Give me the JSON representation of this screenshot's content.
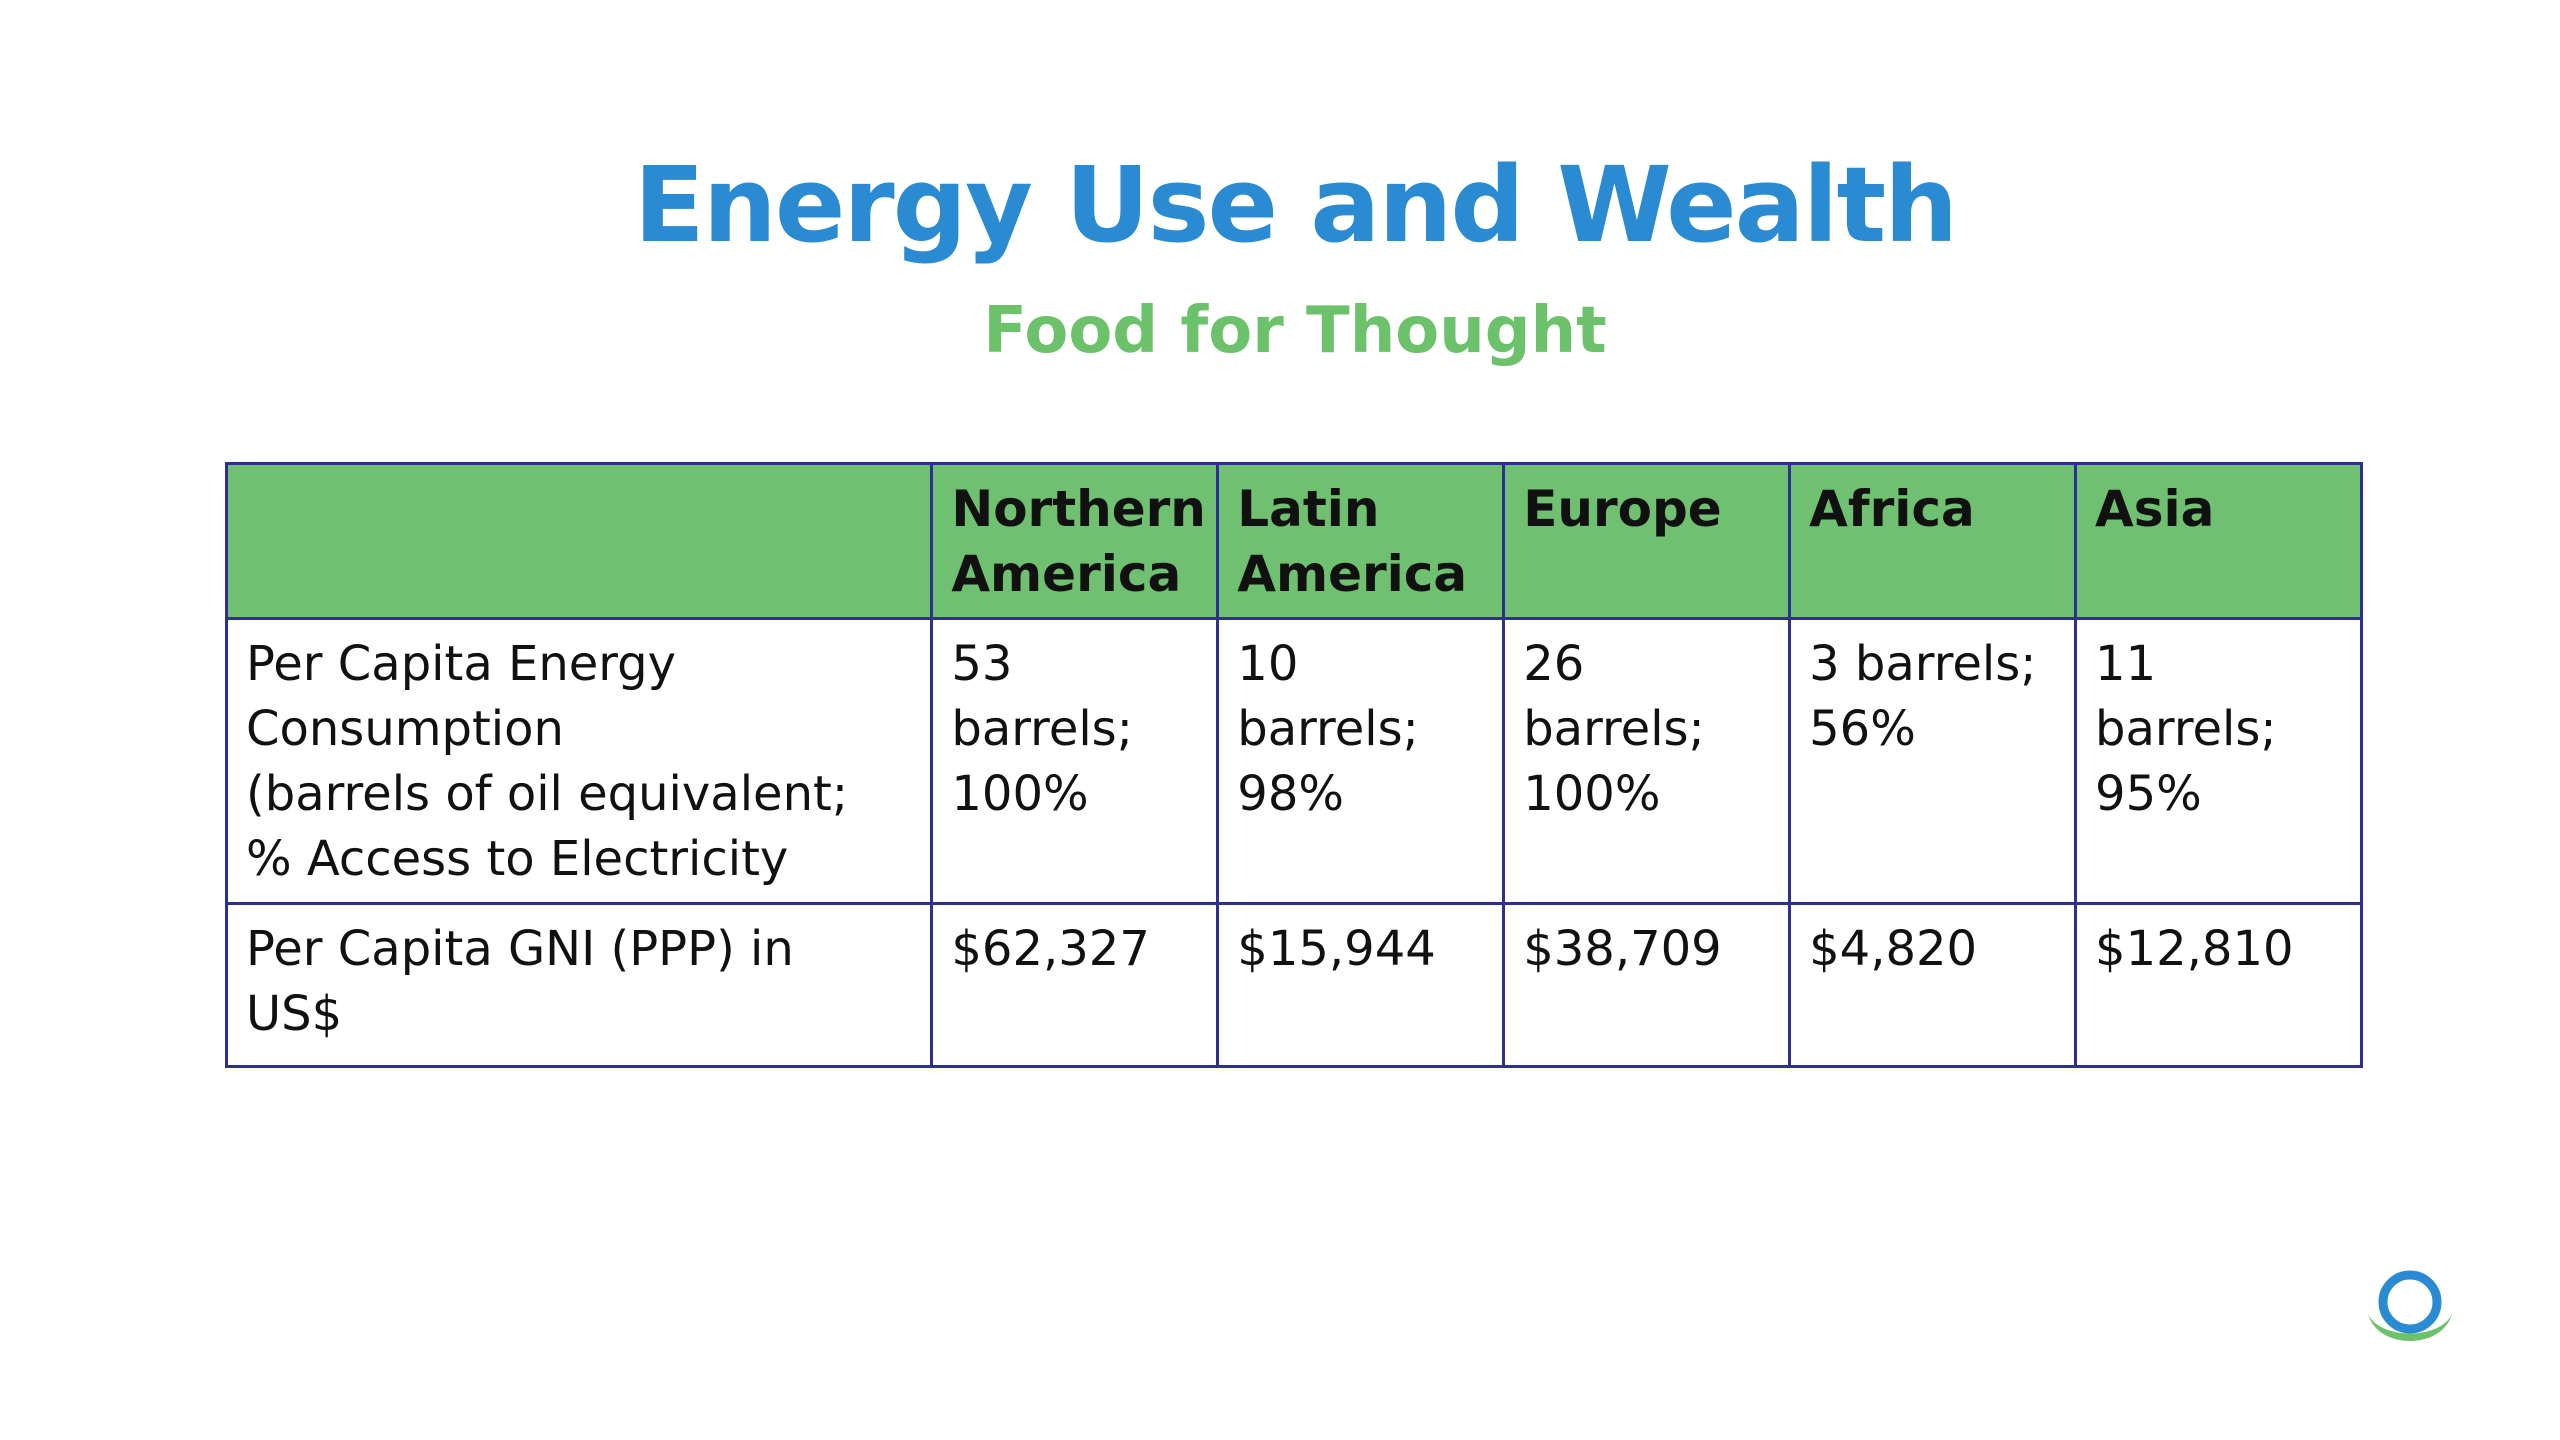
{
  "slide": {
    "title": "Energy Use and Wealth",
    "subtitle": "Food for Thought",
    "logo_icon": "circle-swoosh-logo-icon"
  },
  "colors": {
    "title": "#2a8ad2",
    "subtitle": "#6cc16b",
    "header_fill": "#6fc070",
    "table_border": "#2e2e96"
  },
  "table": {
    "headers": [
      "",
      "Northern America",
      "Latin America",
      "Europe",
      "Africa",
      "Asia"
    ],
    "rows": [
      {
        "label_lines": [
          "Per Capita Energy",
          "Consumption",
          "(barrels of oil equivalent;",
          "% Access to Electricity"
        ],
        "values": [
          [
            "53 barrels;",
            "100%"
          ],
          [
            "10 barrels;",
            "98%"
          ],
          [
            "26 barrels;",
            "100%"
          ],
          [
            "3 barrels;",
            "56%"
          ],
          [
            "11 barrels;",
            "95%"
          ]
        ]
      },
      {
        "label_lines": [
          "Per Capita GNI (PPP) in",
          "US$"
        ],
        "values": [
          [
            "$62,327"
          ],
          [
            "$15,944"
          ],
          [
            "$38,709"
          ],
          [
            "$4,820"
          ],
          [
            "$12,810"
          ]
        ]
      }
    ]
  }
}
